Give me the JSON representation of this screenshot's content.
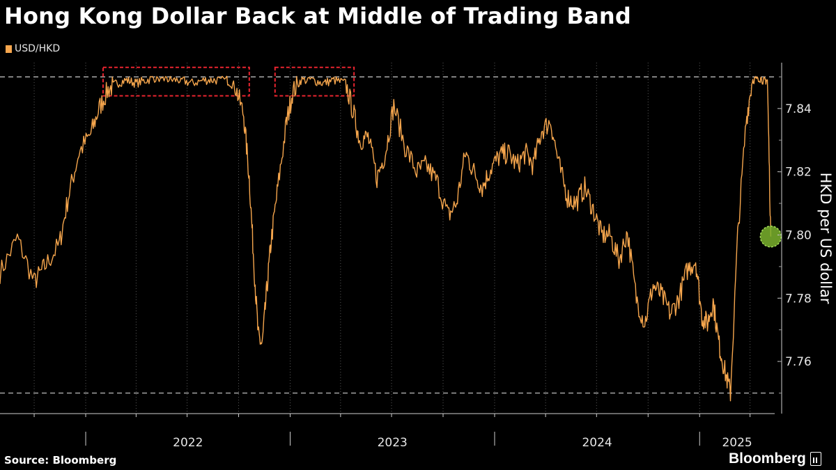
{
  "title": "Hong Kong Dollar Back at Middle of Trading Band",
  "legend": {
    "label": "USD/HKD",
    "color": "#f6a64d"
  },
  "source": "Source: Bloomberg",
  "brand": "Bloomberg",
  "colors": {
    "background": "#000000",
    "line": "#f6a64d",
    "band_lines": "#bdbdbd",
    "highlight_box": "#e8242f",
    "marker": "#7bb32e"
  },
  "chart_data": {
    "type": "line",
    "title": "Hong Kong Dollar Back at Middle of Trading Band",
    "ylabel": "HKD per US dollar",
    "ylim": [
      7.7435,
      7.8545
    ],
    "y_ticks": [
      "7.76",
      "7.78",
      "7.80",
      "7.82",
      "7.84"
    ],
    "x_range": [
      "2021-08-01",
      "2025-05-15"
    ],
    "x_tick_labels": [
      "2022",
      "2023",
      "2024",
      "2025"
    ],
    "y_axis_side": "right",
    "grid": "vertical dotted",
    "legend_position": "top-left",
    "reference_lines": [
      {
        "value": 7.85,
        "style": "dashed"
      },
      {
        "value": 7.75,
        "style": "dashed"
      }
    ],
    "highlight_boxes": [
      {
        "x_start": "2022-02-01",
        "x_end": "2022-10-20",
        "y_low": 7.844,
        "y_high": 7.853
      },
      {
        "x_start": "2022-12-05",
        "x_end": "2023-04-25",
        "y_low": 7.844,
        "y_high": 7.853
      }
    ],
    "marker": {
      "x": "2025-05-08",
      "y": 7.7995
    },
    "series": [
      {
        "name": "USD/HKD",
        "x": [
          "2021-08-01",
          "2021-09-01",
          "2021-10-01",
          "2021-10-20",
          "2021-11-15",
          "2021-12-01",
          "2021-12-20",
          "2022-01-10",
          "2022-01-25",
          "2022-02-10",
          "2022-02-25",
          "2022-03-15",
          "2022-04-01",
          "2022-04-20",
          "2022-05-10",
          "2022-06-01",
          "2022-06-20",
          "2022-07-10",
          "2022-08-01",
          "2022-08-20",
          "2022-09-10",
          "2022-09-25",
          "2022-10-10",
          "2022-10-20",
          "2022-10-28",
          "2022-11-05",
          "2022-11-12",
          "2022-11-20",
          "2022-11-28",
          "2022-12-10",
          "2022-12-25",
          "2023-01-05",
          "2023-01-20",
          "2023-02-10",
          "2023-03-01",
          "2023-03-20",
          "2023-04-10",
          "2023-04-25",
          "2023-05-05",
          "2023-05-20",
          "2023-06-05",
          "2023-06-20",
          "2023-07-05",
          "2023-07-25",
          "2023-08-15",
          "2023-09-01",
          "2023-09-20",
          "2023-10-10",
          "2023-10-25",
          "2023-11-10",
          "2023-11-25",
          "2023-12-10",
          "2023-12-25",
          "2024-01-10",
          "2024-01-25",
          "2024-02-10",
          "2024-02-25",
          "2024-03-10",
          "2024-03-25",
          "2024-04-10",
          "2024-04-25",
          "2024-05-10",
          "2024-05-25",
          "2024-06-10",
          "2024-06-25",
          "2024-07-10",
          "2024-07-25",
          "2024-08-10",
          "2024-08-25",
          "2024-09-10",
          "2024-09-25",
          "2024-10-10",
          "2024-10-25",
          "2024-11-10",
          "2024-11-25",
          "2024-12-10",
          "2024-12-25",
          "2025-01-05",
          "2025-01-15",
          "2025-01-25",
          "2025-02-05",
          "2025-02-15",
          "2025-02-25",
          "2025-03-10",
          "2025-03-25",
          "2025-04-05",
          "2025-04-15",
          "2025-04-25",
          "2025-05-02",
          "2025-05-08"
        ],
        "values": [
          7.788,
          7.799,
          7.785,
          7.79,
          7.797,
          7.812,
          7.826,
          7.832,
          7.84,
          7.846,
          7.848,
          7.849,
          7.848,
          7.849,
          7.85,
          7.849,
          7.849,
          7.848,
          7.849,
          7.849,
          7.849,
          7.847,
          7.838,
          7.818,
          7.792,
          7.768,
          7.765,
          7.782,
          7.798,
          7.815,
          7.835,
          7.845,
          7.849,
          7.849,
          7.848,
          7.849,
          7.848,
          7.838,
          7.83,
          7.831,
          7.818,
          7.826,
          7.841,
          7.828,
          7.82,
          7.822,
          7.817,
          7.806,
          7.81,
          7.826,
          7.82,
          7.815,
          7.821,
          7.825,
          7.826,
          7.822,
          7.826,
          7.822,
          7.833,
          7.836,
          7.822,
          7.812,
          7.81,
          7.815,
          7.808,
          7.8,
          7.8,
          7.792,
          7.801,
          7.78,
          7.772,
          7.784,
          7.781,
          7.775,
          7.78,
          7.789,
          7.792,
          7.774,
          7.772,
          7.779,
          7.765,
          7.757,
          7.75,
          7.8,
          7.836,
          7.849,
          7.85,
          7.849,
          7.849,
          7.7995
        ]
      }
    ]
  }
}
